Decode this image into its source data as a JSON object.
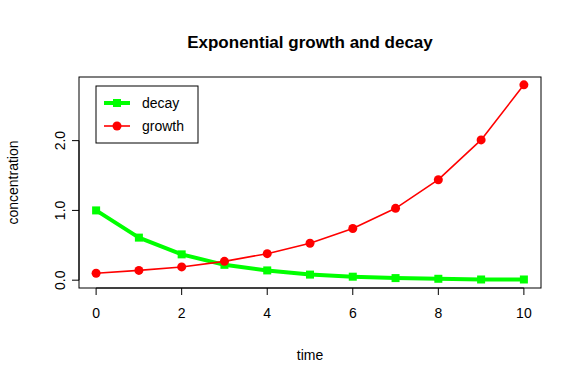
{
  "chart_data": {
    "type": "line",
    "title": "Exponential growth and decay",
    "x_label": "time",
    "y_label": "concentration",
    "x": [
      0,
      1,
      2,
      3,
      4,
      5,
      6,
      7,
      8,
      9,
      10
    ],
    "series": [
      {
        "name": "decay",
        "color": "#00ff00",
        "marker": "square",
        "line_style": "solid",
        "values": [
          1.0,
          0.61,
          0.37,
          0.22,
          0.14,
          0.08,
          0.05,
          0.03,
          0.02,
          0.01,
          0.01
        ]
      },
      {
        "name": "growth",
        "color": "#ff0000",
        "marker": "circle",
        "line_style": "solid",
        "values": [
          0.1,
          0.14,
          0.19,
          0.27,
          0.38,
          0.53,
          0.74,
          1.03,
          1.44,
          2.01,
          2.8
        ]
      }
    ],
    "xlim": [
      -0.4,
      10.4
    ],
    "ylim": [
      -0.112,
      2.912
    ],
    "xticks": [
      0,
      2,
      4,
      6,
      8,
      10
    ],
    "yticks": [
      {
        "value": 0,
        "label": "0.0"
      },
      {
        "value": 1,
        "label": "1.0"
      },
      {
        "value": 2,
        "label": "2.0"
      }
    ],
    "legend": "topleft",
    "grid": false
  }
}
